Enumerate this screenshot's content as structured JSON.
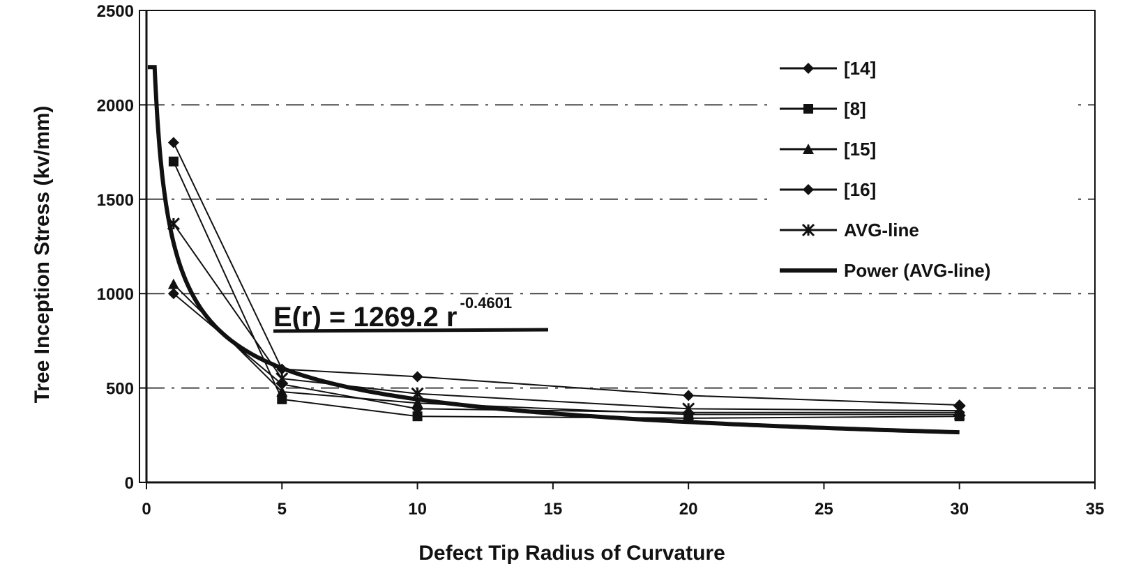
{
  "chart_data": {
    "type": "line",
    "title": "",
    "xlabel": "Defect Tip Radius of Curvature",
    "ylabel": "Tree Inception Stress (kv/mm)",
    "xlim": [
      0,
      35
    ],
    "ylim": [
      0,
      2500
    ],
    "xticks": [
      "0",
      "5",
      "10",
      "15",
      "20",
      "25",
      "30",
      "35"
    ],
    "yticks": [
      "0",
      "500",
      "1000",
      "1500",
      "2000",
      "2500"
    ],
    "grid": "horizontal dash-dot",
    "legend_position": "top-right",
    "series": [
      {
        "name": "[14]",
        "marker": "diamond",
        "x": [
          1,
          5,
          10,
          20,
          30
        ],
        "y": [
          1800,
          600,
          560,
          460,
          410
        ]
      },
      {
        "name": "[8]",
        "marker": "square",
        "x": [
          1,
          5,
          10,
          20,
          30
        ],
        "y": [
          1700,
          440,
          350,
          340,
          350
        ]
      },
      {
        "name": "[15]",
        "marker": "triangle",
        "x": [
          1,
          5,
          10,
          20,
          30
        ],
        "y": [
          1050,
          480,
          420,
          360,
          360
        ]
      },
      {
        "name": "[16]",
        "marker": "diamond",
        "x": [
          1,
          5,
          10,
          20,
          30
        ],
        "y": [
          1000,
          520,
          390,
          370,
          370
        ]
      },
      {
        "name": "AVG-line",
        "marker": "x",
        "x": [
          1,
          5,
          10,
          20,
          30
        ],
        "y": [
          1370,
          550,
          470,
          390,
          380
        ]
      }
    ],
    "trendline": {
      "name": "Power (AVG-line)",
      "coefficient": 1269.2,
      "exponent": -0.4601,
      "equation_text": "E(r) = 1269.2 r",
      "equation_exponent_text": "-0.4601"
    }
  },
  "colors": {
    "background": "#ffffff",
    "line": "#111111"
  }
}
